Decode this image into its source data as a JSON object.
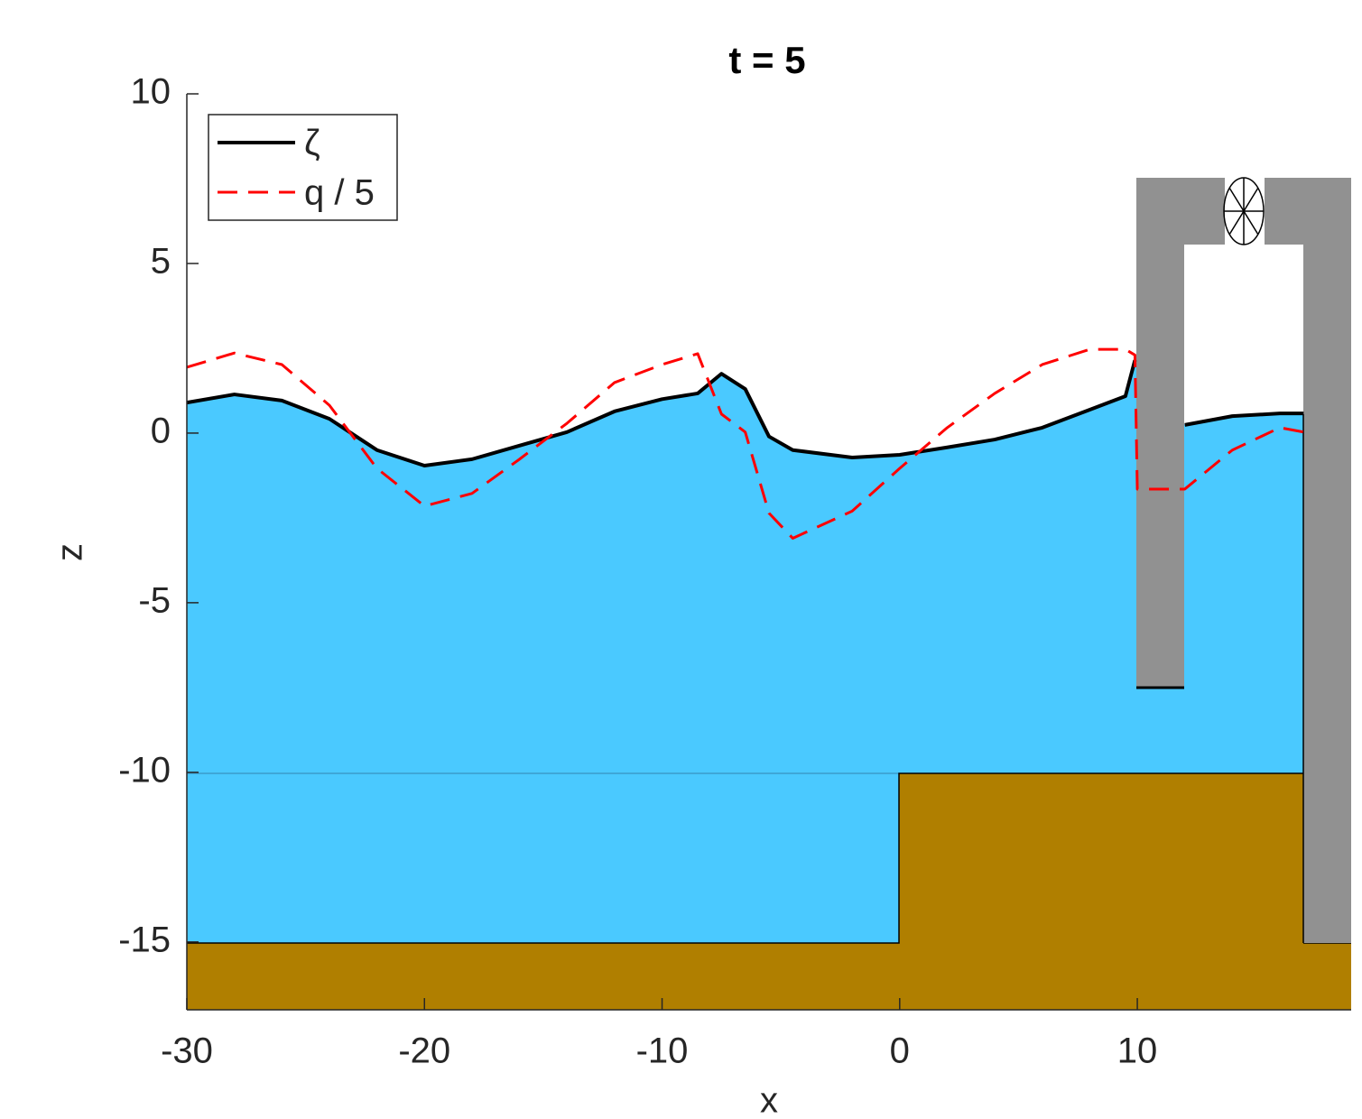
{
  "chart_data": {
    "type": "line",
    "title": "t = 5",
    "x_label": "x",
    "y_label": "z",
    "x": [
      -30,
      -28,
      -26,
      -24,
      -22,
      -20,
      -18,
      -16,
      -14,
      -12,
      -10,
      -8.5,
      -7.5,
      -6.5,
      -5.5,
      -4.5,
      -2,
      0,
      2,
      4,
      6,
      8,
      9.5,
      9.9,
      10,
      12,
      14,
      16,
      17
    ],
    "series": [
      {
        "name": "ζ",
        "color": "#000000",
        "dash": "solid",
        "values": [
          0.9,
          1.14,
          0.96,
          0.42,
          -0.5,
          -0.96,
          -0.77,
          -0.37,
          0.03,
          0.64,
          1.0,
          1.17,
          1.75,
          1.3,
          -0.1,
          -0.5,
          -0.72,
          -0.64,
          -0.42,
          -0.19,
          0.16,
          0.69,
          1.09,
          2.15,
          null,
          0.24,
          0.5,
          0.58,
          0.58
        ]
      },
      {
        "name": "q / 5",
        "color": "#ff0000",
        "dash": "dashed",
        "values": [
          1.94,
          2.36,
          2.02,
          0.82,
          -1.04,
          -2.15,
          -1.78,
          -0.77,
          0.29,
          1.49,
          2.02,
          2.34,
          0.56,
          0.03,
          -2.36,
          -3.1,
          -2.3,
          -1.04,
          0.16,
          1.17,
          2.02,
          2.47,
          2.47,
          2.3,
          -1.65,
          -1.65,
          -0.5,
          0.16,
          0.03
        ]
      }
    ],
    "xlim": [
      -30,
      19
    ],
    "ylim": [
      -17,
      10
    ],
    "xticks": [
      -30,
      -20,
      -10,
      0,
      10
    ],
    "yticks": [
      -15,
      -10,
      -5,
      0,
      5,
      10
    ],
    "legend": "top-left",
    "water_color": "#4ac9ff"
  }
}
